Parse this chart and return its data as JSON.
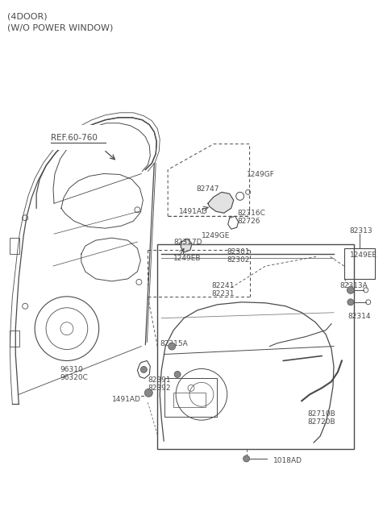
{
  "title_line1": "(4DOOR)",
  "title_line2": "(W/O POWER WINDOW)",
  "bg_color": "#ffffff",
  "line_color": "#4a4a4a",
  "text_color": "#4a4a4a",
  "ref_label": "REF.60-760",
  "fig_width": 4.8,
  "fig_height": 6.55,
  "dpi": 100,
  "label_fs": 6.5,
  "title_fs": 8.0,
  "ref_fs": 7.5
}
